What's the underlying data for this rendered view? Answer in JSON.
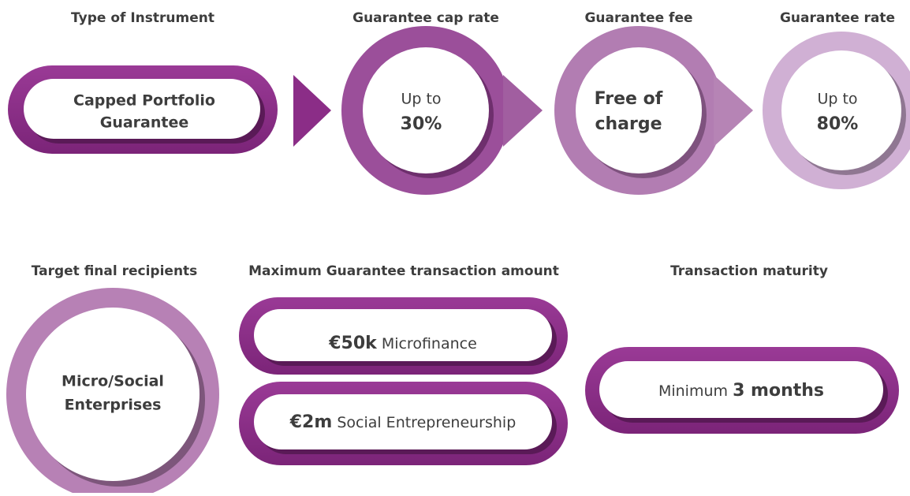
{
  "top": [
    {
      "heading": "Type of Instrument",
      "line1": "Capped Portfolio",
      "line2": "Guarantee"
    },
    {
      "heading": "Guarantee cap rate",
      "line1": "Up to",
      "line2": "30%"
    },
    {
      "heading": "Guarantee fee",
      "line1": "Free of",
      "line2": "charge"
    },
    {
      "heading": "Guarantee rate",
      "line1": "Up to",
      "line2": "80%"
    }
  ],
  "bottom": {
    "recipients": {
      "heading": "Target final recipients",
      "line1": "Micro/Social",
      "line2": "Enterprises"
    },
    "amount": {
      "heading": "Maximum Guarantee transaction amount",
      "items": [
        {
          "bold": "€50k",
          "text": "Microfinance"
        },
        {
          "bold": "€2m",
          "text": "Social Entrepreneurship"
        }
      ]
    },
    "maturity": {
      "heading": "Transaction maturity",
      "text": "Minimum",
      "bold": "3 months"
    }
  }
}
